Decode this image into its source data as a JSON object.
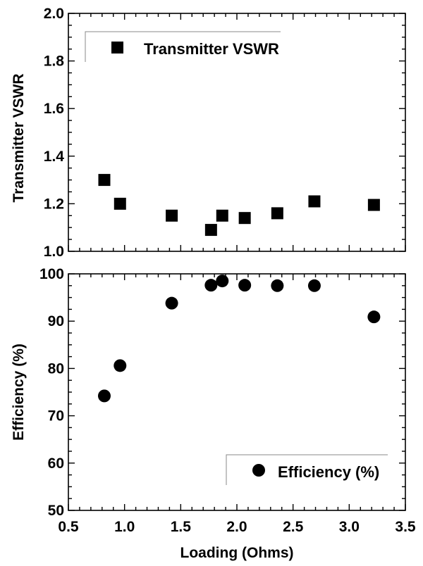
{
  "chart_data": [
    {
      "type": "scatter",
      "ylabel": "Transmitter VSWR",
      "xlim": [
        0.5,
        3.5
      ],
      "ylim": [
        1.0,
        2.0
      ],
      "yticks": [
        "1.0",
        "1.2",
        "1.4",
        "1.6",
        "1.8",
        "2.0"
      ],
      "marker": "square",
      "legend_position": "top-left",
      "series": [
        {
          "name": "Transmitter VSWR",
          "x": [
            0.82,
            0.96,
            1.42,
            1.77,
            1.87,
            2.07,
            2.36,
            2.69,
            3.22
          ],
          "y": [
            1.3,
            1.2,
            1.15,
            1.09,
            1.15,
            1.14,
            1.16,
            1.21,
            1.195
          ]
        }
      ]
    },
    {
      "type": "scatter",
      "xlabel": "Loading (Ohms)",
      "ylabel": "Efficiency (%)",
      "xlim": [
        0.5,
        3.5
      ],
      "ylim": [
        50,
        100
      ],
      "xticks": [
        "0.5",
        "1.0",
        "1.5",
        "2.0",
        "2.5",
        "3.0",
        "3.5"
      ],
      "yticks": [
        "50",
        "60",
        "70",
        "80",
        "90",
        "100"
      ],
      "marker": "circle",
      "legend_position": "bottom-right",
      "series": [
        {
          "name": "Efficiency (%)",
          "x": [
            0.82,
            0.96,
            1.42,
            1.77,
            1.87,
            2.07,
            2.36,
            2.69,
            3.22
          ],
          "y": [
            74.2,
            80.6,
            93.8,
            97.6,
            98.5,
            97.6,
            97.5,
            97.5,
            90.9
          ]
        }
      ]
    }
  ]
}
